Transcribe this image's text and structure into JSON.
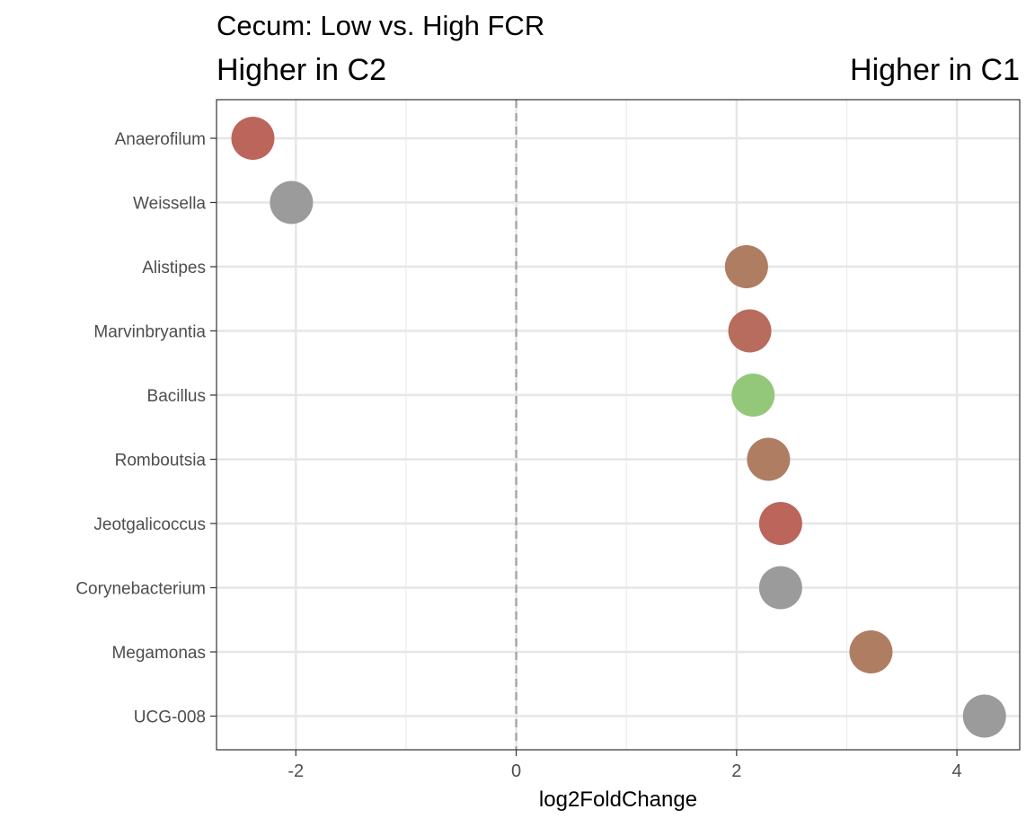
{
  "chart_data": {
    "type": "scatter",
    "title": "Cecum: Low vs. High FCR",
    "annotation_left": "Higher in C2",
    "annotation_right": "Higher in C1",
    "xlabel": "log2FoldChange",
    "ylabel": "",
    "xlim": [
      -2.72,
      4.57
    ],
    "x_ticks": [
      -2,
      0,
      2,
      4
    ],
    "x_tick_labels": [
      "-2",
      "0",
      "2",
      "4"
    ],
    "reference_line_x": 0,
    "grid": true,
    "categories": [
      "Anaerofilum",
      "Weissella",
      "Alistipes",
      "Marvinbryantia",
      "Bacillus",
      "Romboutsia",
      "Jeotgalicoccus",
      "Corynebacterium",
      "Megamonas",
      "UCG-008"
    ],
    "points": [
      {
        "label": "Anaerofilum",
        "x": -2.39,
        "color": "#bb655b"
      },
      {
        "label": "Weissella",
        "x": -2.04,
        "color": "#9b9b9b"
      },
      {
        "label": "Alistipes",
        "x": 2.09,
        "color": "#ae7d62"
      },
      {
        "label": "Marvinbryantia",
        "x": 2.12,
        "color": "#b76c5e"
      },
      {
        "label": "Bacillus",
        "x": 2.15,
        "color": "#93c87b"
      },
      {
        "label": "Romboutsia",
        "x": 2.29,
        "color": "#ae7d62"
      },
      {
        "label": "Jeotgalicoccus",
        "x": 2.4,
        "color": "#bb655b"
      },
      {
        "label": "Corynebacterium",
        "x": 2.4,
        "color": "#9b9b9b"
      },
      {
        "label": "Megamonas",
        "x": 3.22,
        "color": "#ae7d62"
      },
      {
        "label": "UCG-008",
        "x": 4.25,
        "color": "#9b9b9b"
      }
    ]
  }
}
